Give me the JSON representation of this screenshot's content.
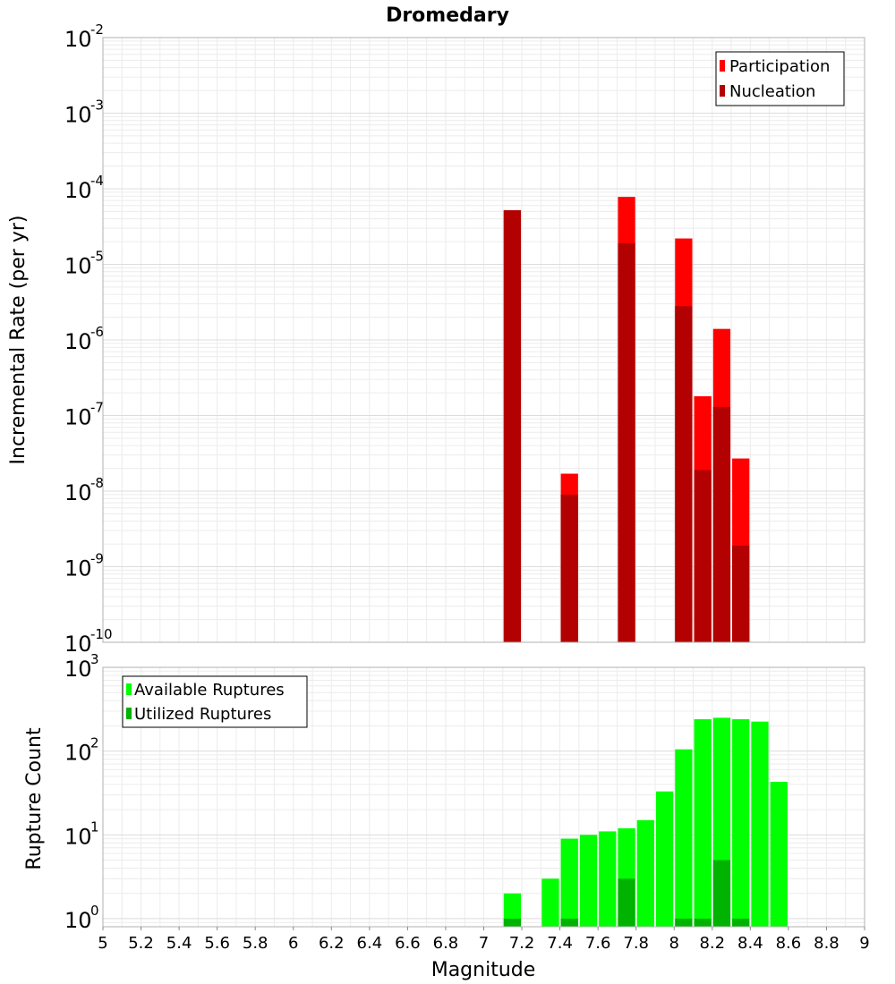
{
  "chart_data": [
    {
      "type": "bar",
      "title": "Dromedary",
      "xlabel": "",
      "ylabel": "Incremental Rate (per yr)",
      "yscale": "log",
      "ylim": [
        1e-10,
        0.01
      ],
      "xlim": [
        5,
        9
      ],
      "grid": true,
      "legend_position": "top-right",
      "bar_width": 0.1,
      "y_ticks": [
        {
          "base": "10",
          "exp": "-10"
        },
        {
          "base": "10",
          "exp": "-9"
        },
        {
          "base": "10",
          "exp": "-8"
        },
        {
          "base": "10",
          "exp": "-7"
        },
        {
          "base": "10",
          "exp": "-6"
        },
        {
          "base": "10",
          "exp": "-5"
        },
        {
          "base": "10",
          "exp": "-4"
        },
        {
          "base": "10",
          "exp": "-3"
        },
        {
          "base": "10",
          "exp": "-2"
        }
      ],
      "series": [
        {
          "name": "Participation",
          "color": "#ff0000",
          "x": [
            7.15,
            7.45,
            7.75,
            8.05,
            8.15,
            8.25,
            8.35
          ],
          "values": [
            5.2e-05,
            1.7e-08,
            7.8e-05,
            2.2e-05,
            1.8e-07,
            1.4e-06,
            2.7e-08
          ]
        },
        {
          "name": "Nucleation",
          "color": "#b30000",
          "x": [
            7.15,
            7.45,
            7.75,
            8.05,
            8.15,
            8.25,
            8.35
          ],
          "values": [
            5.2e-05,
            9e-09,
            1.9e-05,
            2.8e-06,
            1.9e-08,
            1.3e-07,
            1.9e-09
          ]
        }
      ]
    },
    {
      "type": "bar",
      "title": "",
      "xlabel": "Magnitude",
      "ylabel": "Rupture Count",
      "yscale": "log",
      "ylim": [
        0.8,
        1000
      ],
      "xlim": [
        5,
        9
      ],
      "grid": true,
      "legend_position": "top-left",
      "bar_width": 0.1,
      "y_ticks": [
        {
          "base": "10",
          "exp": "0"
        },
        {
          "base": "10",
          "exp": "1"
        },
        {
          "base": "10",
          "exp": "2"
        },
        {
          "base": "10",
          "exp": "3"
        }
      ],
      "x_ticks": [
        "5",
        "5.2",
        "5.4",
        "5.6",
        "5.8",
        "6",
        "6.2",
        "6.4",
        "6.6",
        "6.8",
        "7",
        "7.2",
        "7.4",
        "7.6",
        "7.8",
        "8",
        "8.2",
        "8.4",
        "8.6",
        "8.8",
        "9"
      ],
      "series": [
        {
          "name": "Available Ruptures",
          "color": "#00ff00",
          "x": [
            7.15,
            7.35,
            7.45,
            7.55,
            7.65,
            7.75,
            7.85,
            7.95,
            8.05,
            8.15,
            8.25,
            8.35,
            8.45,
            8.55
          ],
          "values": [
            2,
            3,
            9,
            10,
            11,
            12,
            15,
            33,
            105,
            240,
            250,
            240,
            225,
            43
          ]
        },
        {
          "name": "Utilized Ruptures",
          "color": "#00b300",
          "x": [
            7.15,
            7.45,
            7.75,
            8.05,
            8.15,
            8.25,
            8.35
          ],
          "values": [
            1,
            1,
            3,
            1,
            1,
            5,
            1
          ]
        }
      ]
    }
  ]
}
